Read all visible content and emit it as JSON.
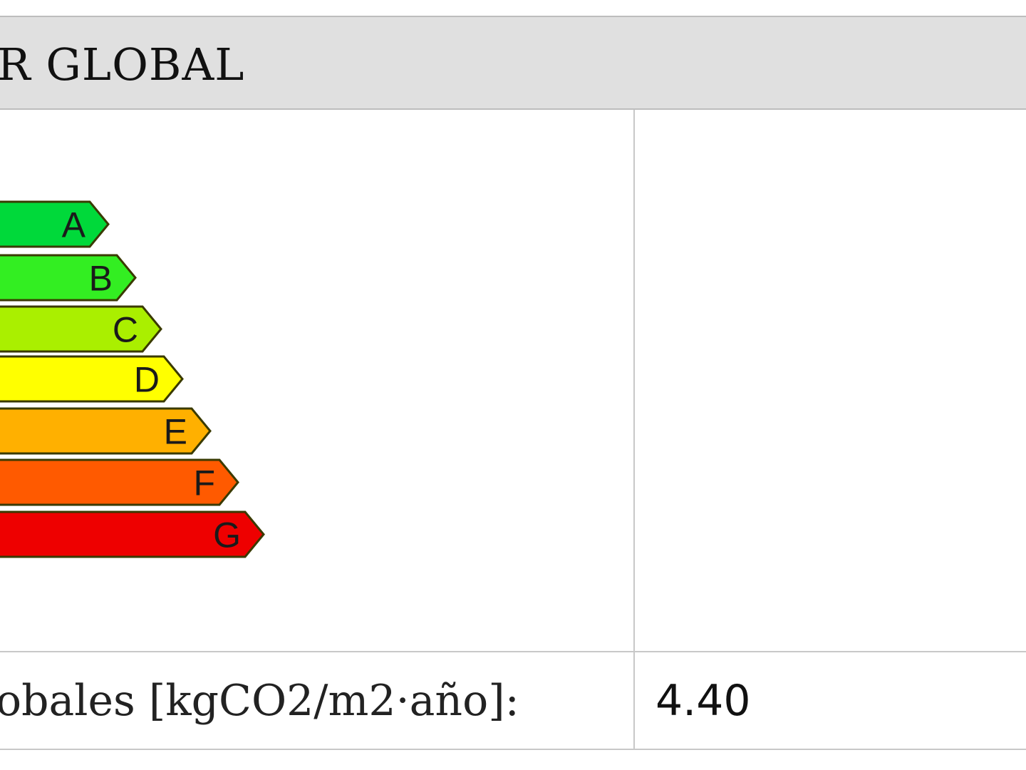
{
  "header": {
    "title": "R GLOBAL"
  },
  "scale": {
    "classes": [
      {
        "label": "A",
        "color": "#00d93a"
      },
      {
        "label": "B",
        "color": "#33ee22"
      },
      {
        "label": "C",
        "color": "#aaef00"
      },
      {
        "label": "D",
        "color": "#ffff00"
      },
      {
        "label": "E",
        "color": "#ffb000"
      },
      {
        "label": "F",
        "color": "#ff5a00"
      },
      {
        "label": "G",
        "color": "#ee0000"
      }
    ]
  },
  "table": {
    "rows": [
      [
        "obales [kgCO2/m2·año]:",
        "4.40"
      ]
    ]
  }
}
